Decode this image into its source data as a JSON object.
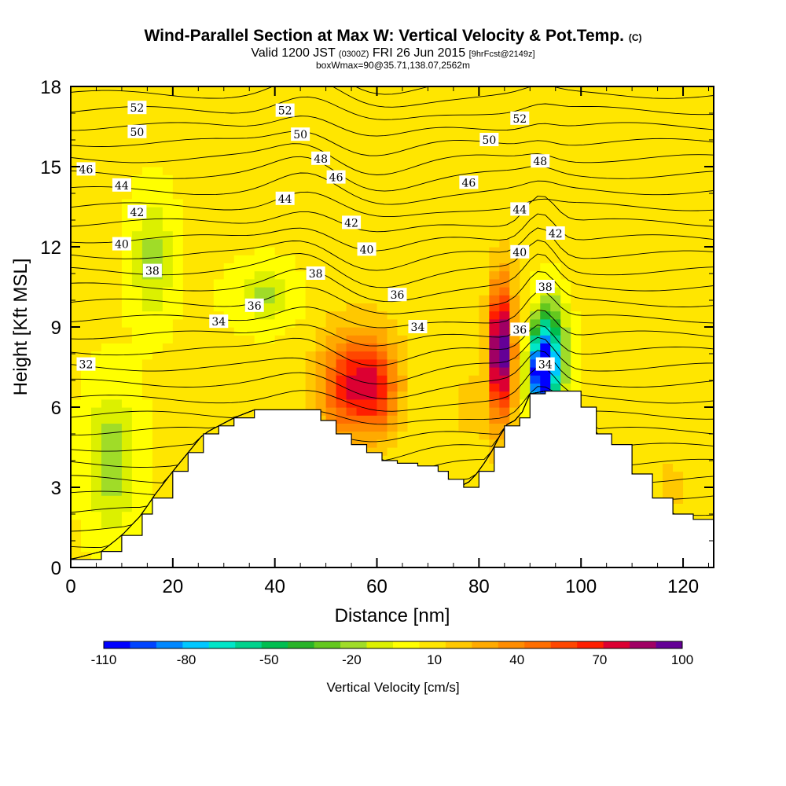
{
  "title": {
    "main": "Wind-Parallel Section at Max W: Vertical Velocity & Pot.Temp.",
    "copyright": "(C)",
    "valid_prefix": "Valid 1200 JST",
    "valid_utc": "(0300Z)",
    "valid_date": "FRI 26 Jun 2015",
    "forecast": "[9hrFcst@2149z]",
    "box_info": "boxWmax=90@35.71,138.07,2562m"
  },
  "chart_data": {
    "type": "heatmap",
    "title": "Wind-Parallel Section at Max W: Vertical Velocity & Pot.Temp.",
    "xlabel": "Distance [nm]",
    "ylabel": "Height [Kft MSL]",
    "xlim": [
      0,
      126
    ],
    "ylim": [
      0,
      18
    ],
    "x_ticks": [
      0,
      20,
      40,
      60,
      80,
      100,
      120
    ],
    "y_ticks": [
      0,
      3,
      6,
      9,
      12,
      15,
      18
    ],
    "grid": false,
    "colorbar": {
      "label": "Vertical Velocity [cm/s]",
      "min": -110,
      "max": 100,
      "step": 10,
      "tick_labels": [
        "-110",
        "-80",
        "-50",
        "-20",
        "10",
        "40",
        "70",
        "100"
      ],
      "colors": [
        "#0000ff",
        "#0044ff",
        "#0088ff",
        "#00c8ff",
        "#00e6c8",
        "#00d28c",
        "#00be50",
        "#28b428",
        "#64c81e",
        "#a0dc28",
        "#dcf000",
        "#ffff00",
        "#ffe600",
        "#ffc800",
        "#ffaa00",
        "#ff8c00",
        "#ff6e00",
        "#ff4600",
        "#ff1e00",
        "#dc0032",
        "#a00064",
        "#640096"
      ]
    },
    "terrain_height_kft": [
      [
        0,
        0.3
      ],
      [
        6,
        0.6
      ],
      [
        10,
        1.2
      ],
      [
        14,
        2.0
      ],
      [
        16,
        2.6
      ],
      [
        20,
        3.6
      ],
      [
        23,
        4.3
      ],
      [
        26,
        5.0
      ],
      [
        29,
        5.3
      ],
      [
        32,
        5.6
      ],
      [
        36,
        5.9
      ],
      [
        46,
        5.9
      ],
      [
        49,
        5.5
      ],
      [
        52,
        5.0
      ],
      [
        55,
        4.6
      ],
      [
        58,
        4.3
      ],
      [
        61,
        4.0
      ],
      [
        64,
        3.9
      ],
      [
        68,
        3.8
      ],
      [
        72,
        3.6
      ],
      [
        74,
        3.3
      ],
      [
        77,
        3.0
      ],
      [
        80,
        3.6
      ],
      [
        83,
        4.5
      ],
      [
        85,
        5.3
      ],
      [
        88,
        5.6
      ],
      [
        90,
        6.5
      ],
      [
        93,
        6.6
      ],
      [
        98,
        6.6
      ],
      [
        100,
        6.0
      ],
      [
        103,
        5.0
      ],
      [
        106,
        4.6
      ],
      [
        110,
        3.5
      ],
      [
        114,
        2.6
      ],
      [
        118,
        2.0
      ],
      [
        122,
        1.8
      ],
      [
        126,
        1.3
      ]
    ],
    "vertical_velocity_cells": [
      {
        "x": 8,
        "z": 4.0,
        "sx": 5,
        "sz": 2.6,
        "w": -18
      },
      {
        "x": 16,
        "z": 11.5,
        "sx": 4,
        "sz": 2.2,
        "w": -15
      },
      {
        "x": 28,
        "z": 6.0,
        "sx": 4,
        "sz": 1.5,
        "w": 10
      },
      {
        "x": 12,
        "z": 17.5,
        "sx": 6,
        "sz": 1.2,
        "w": 18
      },
      {
        "x": 48,
        "z": 15.0,
        "sx": 6,
        "sz": 2.6,
        "w": 18
      },
      {
        "x": 38,
        "z": 10.2,
        "sx": 6,
        "sz": 1.1,
        "w": -12
      },
      {
        "x": 54,
        "z": 6.8,
        "sx": 5,
        "sz": 1.7,
        "w": 58
      },
      {
        "x": 60,
        "z": 6.7,
        "sx": 4,
        "sz": 1.6,
        "w": 55
      },
      {
        "x": 57,
        "z": 7.0,
        "sx": 9,
        "sz": 2.6,
        "w": 32
      },
      {
        "x": 70,
        "z": 16.2,
        "sx": 5,
        "sz": 2.0,
        "w": 14
      },
      {
        "x": 84,
        "z": 8.2,
        "sx": 1.6,
        "sz": 2.2,
        "w": 95
      },
      {
        "x": 85,
        "z": 8.0,
        "sx": 3.5,
        "sz": 3.2,
        "w": 50
      },
      {
        "x": 78,
        "z": 6.0,
        "sx": 4,
        "sz": 2.0,
        "w": 22
      },
      {
        "x": 94,
        "z": 8.0,
        "sx": 3,
        "sz": 2.0,
        "w": -60
      },
      {
        "x": 92,
        "z": 7.2,
        "sx": 2.5,
        "sz": 1.5,
        "w": -95
      },
      {
        "x": 98,
        "z": 13.0,
        "sx": 5,
        "sz": 1.6,
        "w": 20
      },
      {
        "x": 110,
        "z": 4.5,
        "sx": 6,
        "sz": 2.0,
        "w": 18
      },
      {
        "x": 118,
        "z": 3.0,
        "sx": 4,
        "sz": 1.5,
        "w": 22
      }
    ],
    "theta_contour_labels": [
      {
        "text": "52",
        "x": 13,
        "z": 17.2
      },
      {
        "text": "50",
        "x": 13,
        "z": 16.3
      },
      {
        "text": "46",
        "x": 3,
        "z": 14.9
      },
      {
        "text": "44",
        "x": 10,
        "z": 14.3
      },
      {
        "text": "42",
        "x": 13,
        "z": 13.3
      },
      {
        "text": "40",
        "x": 10,
        "z": 12.1
      },
      {
        "text": "38",
        "x": 16,
        "z": 11.1
      },
      {
        "text": "32",
        "x": 3,
        "z": 7.6
      },
      {
        "text": "34",
        "x": 29,
        "z": 9.2
      },
      {
        "text": "36",
        "x": 36,
        "z": 9.8
      },
      {
        "text": "52",
        "x": 42,
        "z": 17.1
      },
      {
        "text": "50",
        "x": 45,
        "z": 16.2
      },
      {
        "text": "48",
        "x": 49,
        "z": 15.3
      },
      {
        "text": "46",
        "x": 52,
        "z": 14.6
      },
      {
        "text": "44",
        "x": 42,
        "z": 13.8
      },
      {
        "text": "42",
        "x": 55,
        "z": 12.9
      },
      {
        "text": "40",
        "x": 58,
        "z": 11.9
      },
      {
        "text": "38",
        "x": 48,
        "z": 11.0
      },
      {
        "text": "36",
        "x": 64,
        "z": 10.2
      },
      {
        "text": "34",
        "x": 68,
        "z": 9.0
      },
      {
        "text": "52",
        "x": 88,
        "z": 16.8
      },
      {
        "text": "50",
        "x": 82,
        "z": 16.0
      },
      {
        "text": "48",
        "x": 92,
        "z": 15.2
      },
      {
        "text": "46",
        "x": 78,
        "z": 14.4
      },
      {
        "text": "44",
        "x": 88,
        "z": 13.4
      },
      {
        "text": "42",
        "x": 95,
        "z": 12.5
      },
      {
        "text": "40",
        "x": 88,
        "z": 11.8
      },
      {
        "text": "38",
        "x": 93,
        "z": 10.5
      },
      {
        "text": "36",
        "x": 88,
        "z": 8.9
      },
      {
        "text": "34",
        "x": 93,
        "z": 7.6
      }
    ]
  }
}
